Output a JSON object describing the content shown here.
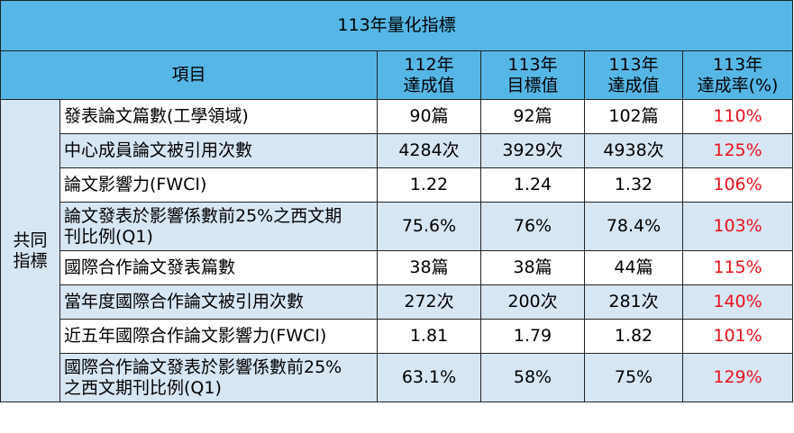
{
  "title": "113年量化指標",
  "header": {
    "item": "項目",
    "col_112": [
      "112年",
      "達成值"
    ],
    "col_113_target": [
      "113年",
      "目標值"
    ],
    "col_113_actual": [
      "113年",
      "達成值"
    ],
    "col_rate": [
      "113年",
      "達成率(%)"
    ]
  },
  "group_label": [
    "共同",
    "指標"
  ],
  "rows": [
    {
      "name": [
        "發表論文篇數(工學領域)"
      ],
      "v112": "90篇",
      "target": "92篇",
      "actual": "102篇",
      "rate": "110%"
    },
    {
      "name": [
        "中心成員論文被引用次數"
      ],
      "v112": "4284次",
      "target": "3929次",
      "actual": "4938次",
      "rate": "125%"
    },
    {
      "name": [
        "論文影響力(FWCI)"
      ],
      "v112": "1.22",
      "target": "1.24",
      "actual": "1.32",
      "rate": "106%"
    },
    {
      "name": [
        "論文發表於影響係數前25%之西文期",
        "刊比例(Q1)"
      ],
      "v112": "75.6%",
      "target": "76%",
      "actual": "78.4%",
      "rate": "103%"
    },
    {
      "name": [
        "國際合作論文發表篇數"
      ],
      "v112": "38篇",
      "target": "38篇",
      "actual": "44篇",
      "rate": "115%"
    },
    {
      "name": [
        "當年度國際合作論文被引用次數"
      ],
      "v112": "272次",
      "target": "200次",
      "actual": "281次",
      "rate": "140%"
    },
    {
      "name": [
        "近五年國際合作論文影響力(FWCI)"
      ],
      "v112": "1.81",
      "target": "1.79",
      "actual": "1.82",
      "rate": "101%"
    },
    {
      "name": [
        "國際合作論文發表於影響係數前25%",
        "之西文期刊比例(Q1)"
      ],
      "v112": "63.1%",
      "target": "58%",
      "actual": "75%",
      "rate": "129%"
    }
  ],
  "colors": {
    "header_bg": "#56b7e6",
    "row_alt_bg": "#d7e6f3",
    "rate_text": "#e8101a"
  }
}
